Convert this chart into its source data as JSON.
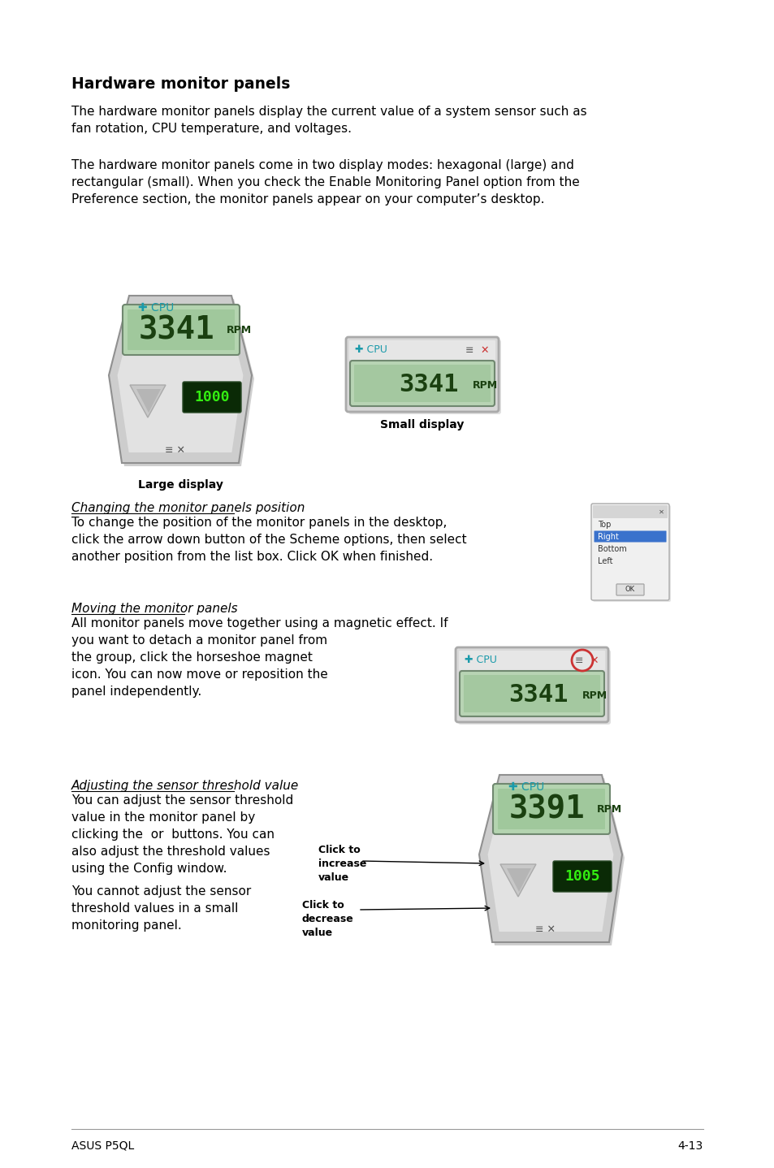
{
  "title": "Hardware monitor panels",
  "para1": "The hardware monitor panels display the current value of a system sensor such as\nfan rotation, CPU temperature, and voltages.",
  "para2": "The hardware monitor panels come in two display modes: hexagonal (large) and\nrectangular (small). When you check the Enable Monitoring Panel option from the\nPreference section, the monitor panels appear on your computer’s desktop.",
  "label_large": "Large display",
  "label_small": "Small display",
  "sec1_title": "Changing the monitor panels position",
  "sec1_body": "To change the position of the monitor panels in the desktop,\nclick the arrow down button of the Scheme options, then select\nanother position from the list box. Click OK when finished.",
  "sec2_title": "Moving the monitor panels",
  "sec2_body": "All monitor panels move together using a magnetic effect. If\nyou want to detach a monitor panel from\nthe group, click the horseshoe magnet\nicon. You can now move or reposition the\npanel independently.",
  "sec3_title": "Adjusting the sensor threshold value",
  "sec3_body1": "You can adjust the sensor threshold\nvalue in the monitor panel by\nclicking the  or  buttons. You can\nalso adjust the threshold values\nusing the Config window.",
  "sec3_body2": "You cannot adjust the sensor\nthreshold values in a small\nmonitoring panel.",
  "click_increase": "Click to\nincrease\nvalue",
  "click_decrease": "Click to\ndecrease\nvalue",
  "footer_left": "ASUS P5QL",
  "footer_right": "4-13"
}
